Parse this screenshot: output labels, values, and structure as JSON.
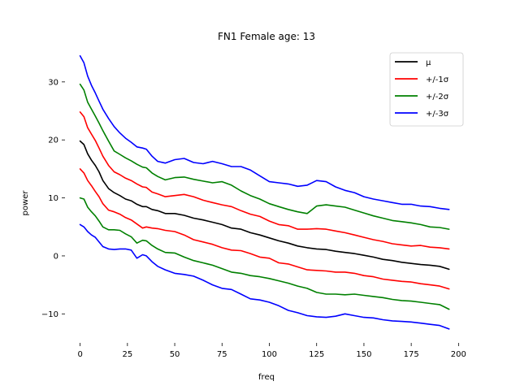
{
  "chart_data": {
    "type": "line",
    "title": "FN1 Female age: 13",
    "xlabel": "freq",
    "ylabel": "power",
    "xlim": [
      -8,
      205
    ],
    "ylim": [
      -15,
      36
    ],
    "xticks": [
      0,
      25,
      50,
      75,
      100,
      125,
      150,
      175,
      200
    ],
    "yticks": [
      -10,
      0,
      10,
      20,
      30
    ],
    "grid": false,
    "legend_position": "top-right",
    "x": [
      0,
      2,
      4,
      6,
      8,
      10,
      12,
      15,
      18,
      21,
      24,
      27,
      30,
      33,
      35,
      38,
      41,
      45,
      50,
      55,
      60,
      65,
      70,
      75,
      80,
      85,
      90,
      95,
      100,
      105,
      110,
      115,
      120,
      125,
      130,
      135,
      140,
      145,
      150,
      155,
      160,
      165,
      170,
      175,
      180,
      185,
      190,
      195
    ],
    "series": [
      {
        "name": "μ",
        "color": "#000000",
        "values": [
          19.8,
          19.2,
          17.6,
          16.5,
          15.6,
          14.5,
          13.0,
          11.6,
          10.9,
          10.4,
          9.8,
          9.5,
          8.9,
          8.5,
          8.5,
          8.0,
          7.8,
          7.3,
          7.3,
          7.0,
          6.5,
          6.2,
          5.8,
          5.4,
          4.8,
          4.6,
          4.0,
          3.6,
          3.1,
          2.6,
          2.2,
          1.7,
          1.4,
          1.2,
          1.1,
          0.8,
          0.6,
          0.4,
          0.1,
          -0.2,
          -0.6,
          -0.8,
          -1.1,
          -1.3,
          -1.5,
          -1.6,
          -1.8,
          -2.3
        ]
      },
      {
        "name": "+/-1σ",
        "color": "#ff0000",
        "values": [
          24.8,
          24.0,
          22.1,
          21.0,
          19.9,
          18.6,
          17.2,
          15.6,
          14.5,
          14.0,
          13.4,
          13.0,
          12.4,
          11.9,
          11.8,
          11.0,
          10.7,
          10.2,
          10.4,
          10.6,
          10.2,
          9.6,
          9.2,
          8.8,
          8.5,
          7.8,
          7.2,
          6.8,
          6.0,
          5.4,
          5.2,
          4.6,
          4.6,
          4.7,
          4.6,
          4.3,
          4.0,
          3.6,
          3.2,
          2.8,
          2.5,
          2.1,
          1.9,
          1.7,
          1.8,
          1.5,
          1.4,
          1.2
        ]
      },
      {
        "name": "+/-1σ",
        "color": "#ff0000",
        "values": [
          15.0,
          14.3,
          13.0,
          12.1,
          11.1,
          10.2,
          9.0,
          7.9,
          7.6,
          7.2,
          6.6,
          6.2,
          5.5,
          4.8,
          5.0,
          4.8,
          4.7,
          4.4,
          4.2,
          3.6,
          2.8,
          2.4,
          2.0,
          1.4,
          1.0,
          0.9,
          0.4,
          -0.2,
          -0.4,
          -1.2,
          -1.4,
          -1.9,
          -2.4,
          -2.5,
          -2.6,
          -2.8,
          -2.8,
          -3.0,
          -3.4,
          -3.6,
          -4.0,
          -4.2,
          -4.4,
          -4.5,
          -4.8,
          -5.0,
          -5.2,
          -5.7
        ]
      },
      {
        "name": "+/-2σ",
        "color": "#008000",
        "values": [
          29.6,
          28.6,
          26.5,
          25.3,
          24.1,
          22.9,
          21.6,
          19.8,
          18.1,
          17.5,
          16.9,
          16.4,
          15.8,
          15.3,
          15.2,
          14.3,
          13.7,
          13.1,
          13.5,
          13.6,
          13.2,
          12.9,
          12.6,
          12.8,
          12.2,
          11.2,
          10.4,
          9.8,
          9.0,
          8.5,
          8.0,
          7.6,
          7.3,
          8.6,
          8.8,
          8.6,
          8.4,
          7.9,
          7.4,
          6.9,
          6.5,
          6.1,
          5.9,
          5.7,
          5.4,
          5.0,
          4.9,
          4.6
        ]
      },
      {
        "name": "+/-2σ",
        "color": "#008000",
        "values": [
          10.0,
          9.8,
          8.4,
          7.6,
          6.9,
          6.0,
          5.0,
          4.5,
          4.5,
          4.4,
          3.8,
          3.3,
          2.2,
          2.7,
          2.6,
          1.8,
          1.2,
          0.6,
          0.5,
          -0.2,
          -0.8,
          -1.2,
          -1.6,
          -2.2,
          -2.8,
          -3.0,
          -3.4,
          -3.6,
          -3.9,
          -4.3,
          -4.7,
          -5.2,
          -5.6,
          -6.3,
          -6.6,
          -6.6,
          -6.7,
          -6.6,
          -6.8,
          -7.0,
          -7.2,
          -7.5,
          -7.7,
          -7.8,
          -8.0,
          -8.2,
          -8.4,
          -9.2
        ]
      },
      {
        "name": "+/-3σ",
        "color": "#0000ff",
        "values": [
          34.5,
          33.3,
          31.0,
          29.4,
          28.1,
          26.7,
          25.3,
          23.7,
          22.3,
          21.2,
          20.3,
          19.6,
          18.8,
          18.6,
          18.4,
          17.2,
          16.3,
          16.0,
          16.6,
          16.8,
          16.1,
          15.9,
          16.3,
          15.9,
          15.4,
          15.4,
          14.8,
          13.8,
          12.8,
          12.6,
          12.4,
          12.0,
          12.2,
          13.0,
          12.8,
          11.9,
          11.3,
          10.9,
          10.2,
          9.8,
          9.5,
          9.2,
          8.9,
          8.9,
          8.6,
          8.5,
          8.2,
          8.0
        ]
      },
      {
        "name": "+/-3σ",
        "color": "#0000ff",
        "values": [
          5.4,
          5.0,
          4.2,
          3.6,
          3.2,
          2.4,
          1.6,
          1.2,
          1.1,
          1.2,
          1.2,
          1.0,
          -0.4,
          0.2,
          0.0,
          -1.0,
          -1.8,
          -2.4,
          -3.0,
          -3.2,
          -3.5,
          -4.2,
          -5.0,
          -5.6,
          -5.8,
          -6.6,
          -7.4,
          -7.6,
          -8.0,
          -8.6,
          -9.4,
          -9.8,
          -10.3,
          -10.5,
          -10.6,
          -10.4,
          -10.0,
          -10.3,
          -10.6,
          -10.7,
          -11.0,
          -11.2,
          -11.3,
          -11.4,
          -11.6,
          -11.8,
          -12.0,
          -12.6
        ]
      }
    ],
    "legend": [
      {
        "label": "μ",
        "color": "#000000"
      },
      {
        "label": "+/-1σ",
        "color": "#ff0000"
      },
      {
        "label": "+/-2σ",
        "color": "#008000"
      },
      {
        "label": "+/-3σ",
        "color": "#0000ff"
      }
    ]
  }
}
